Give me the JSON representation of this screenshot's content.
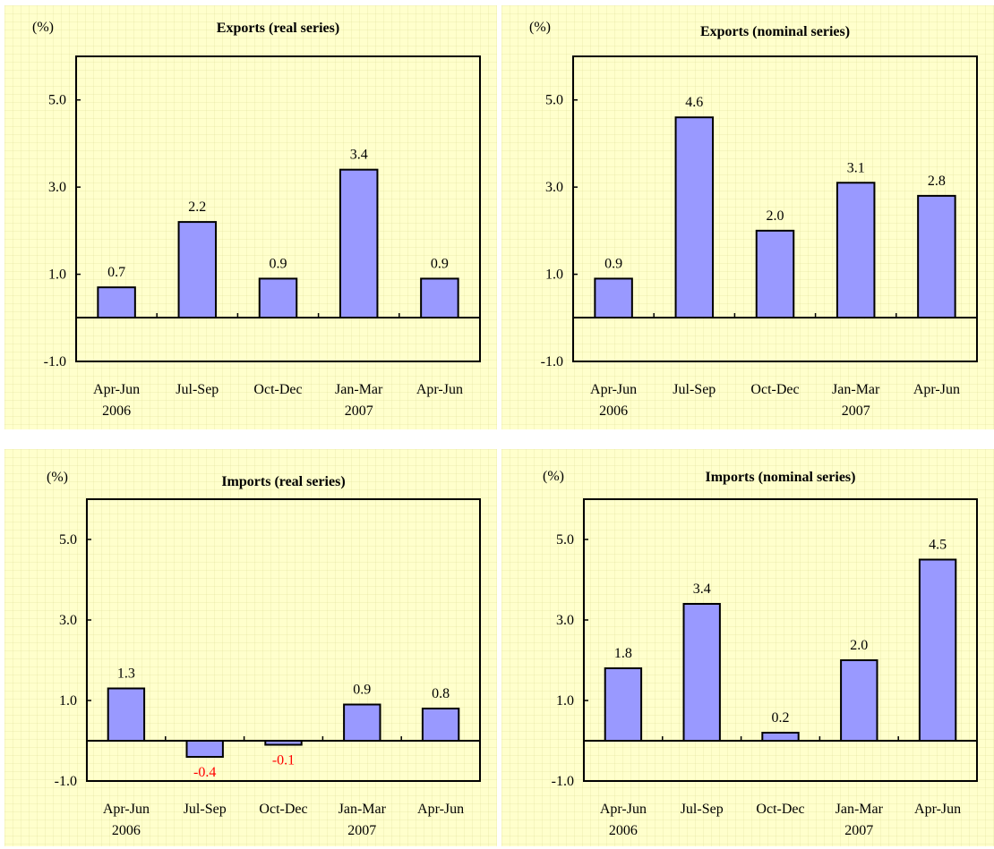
{
  "colors": {
    "bar": "#9999ff",
    "negative_label": "#ff0000",
    "background": "#ffffcc"
  },
  "chart_data": [
    {
      "type": "bar",
      "title": "Exports (real series)",
      "unit_label": "(%)",
      "categories": [
        "Apr-Jun",
        "Jul-Sep",
        "Oct-Dec",
        "Jan-Mar",
        "Apr-Jun"
      ],
      "year_labels": [
        "2006",
        "",
        "",
        "2007",
        ""
      ],
      "values": [
        0.7,
        2.2,
        0.9,
        3.4,
        0.9
      ],
      "value_labels": [
        "0.7",
        "2.2",
        "0.9",
        "3.4",
        "0.9"
      ],
      "yticks": [
        "5.0",
        "3.0",
        "1.0",
        "-1.0"
      ],
      "ylim": [
        -1,
        6
      ]
    },
    {
      "type": "bar",
      "title": "Exports (nominal series)",
      "unit_label": "(%)",
      "categories": [
        "Apr-Jun",
        "Jul-Sep",
        "Oct-Dec",
        "Jan-Mar",
        "Apr-Jun"
      ],
      "year_labels": [
        "2006",
        "",
        "",
        "2007",
        ""
      ],
      "values": [
        0.9,
        4.6,
        2.0,
        3.1,
        2.8
      ],
      "value_labels": [
        "0.9",
        "4.6",
        "2.0",
        "3.1",
        "2.8"
      ],
      "yticks": [
        "5.0",
        "3.0",
        "1.0",
        "-1.0"
      ],
      "ylim": [
        -1,
        6
      ]
    },
    {
      "type": "bar",
      "title": "Imports (real series)",
      "unit_label": "(%)",
      "categories": [
        "Apr-Jun",
        "Jul-Sep",
        "Oct-Dec",
        "Jan-Mar",
        "Apr-Jun"
      ],
      "year_labels": [
        "2006",
        "",
        "",
        "2007",
        ""
      ],
      "values": [
        1.3,
        -0.4,
        -0.1,
        0.9,
        0.8
      ],
      "value_labels": [
        "1.3",
        "-0.4",
        "-0.1",
        "0.9",
        "0.8"
      ],
      "yticks": [
        "5.0",
        "3.0",
        "1.0",
        "-1.0"
      ],
      "ylim": [
        -1,
        6
      ]
    },
    {
      "type": "bar",
      "title": "Imports (nominal series)",
      "unit_label": "(%)",
      "categories": [
        "Apr-Jun",
        "Jul-Sep",
        "Oct-Dec",
        "Jan-Mar",
        "Apr-Jun"
      ],
      "year_labels": [
        "2006",
        "",
        "",
        "2007",
        ""
      ],
      "values": [
        1.8,
        3.4,
        0.2,
        2.0,
        4.5
      ],
      "value_labels": [
        "1.8",
        "3.4",
        "0.2",
        "2.0",
        "4.5"
      ],
      "yticks": [
        "5.0",
        "3.0",
        "1.0",
        "-1.0"
      ],
      "ylim": [
        -1,
        6
      ]
    }
  ]
}
